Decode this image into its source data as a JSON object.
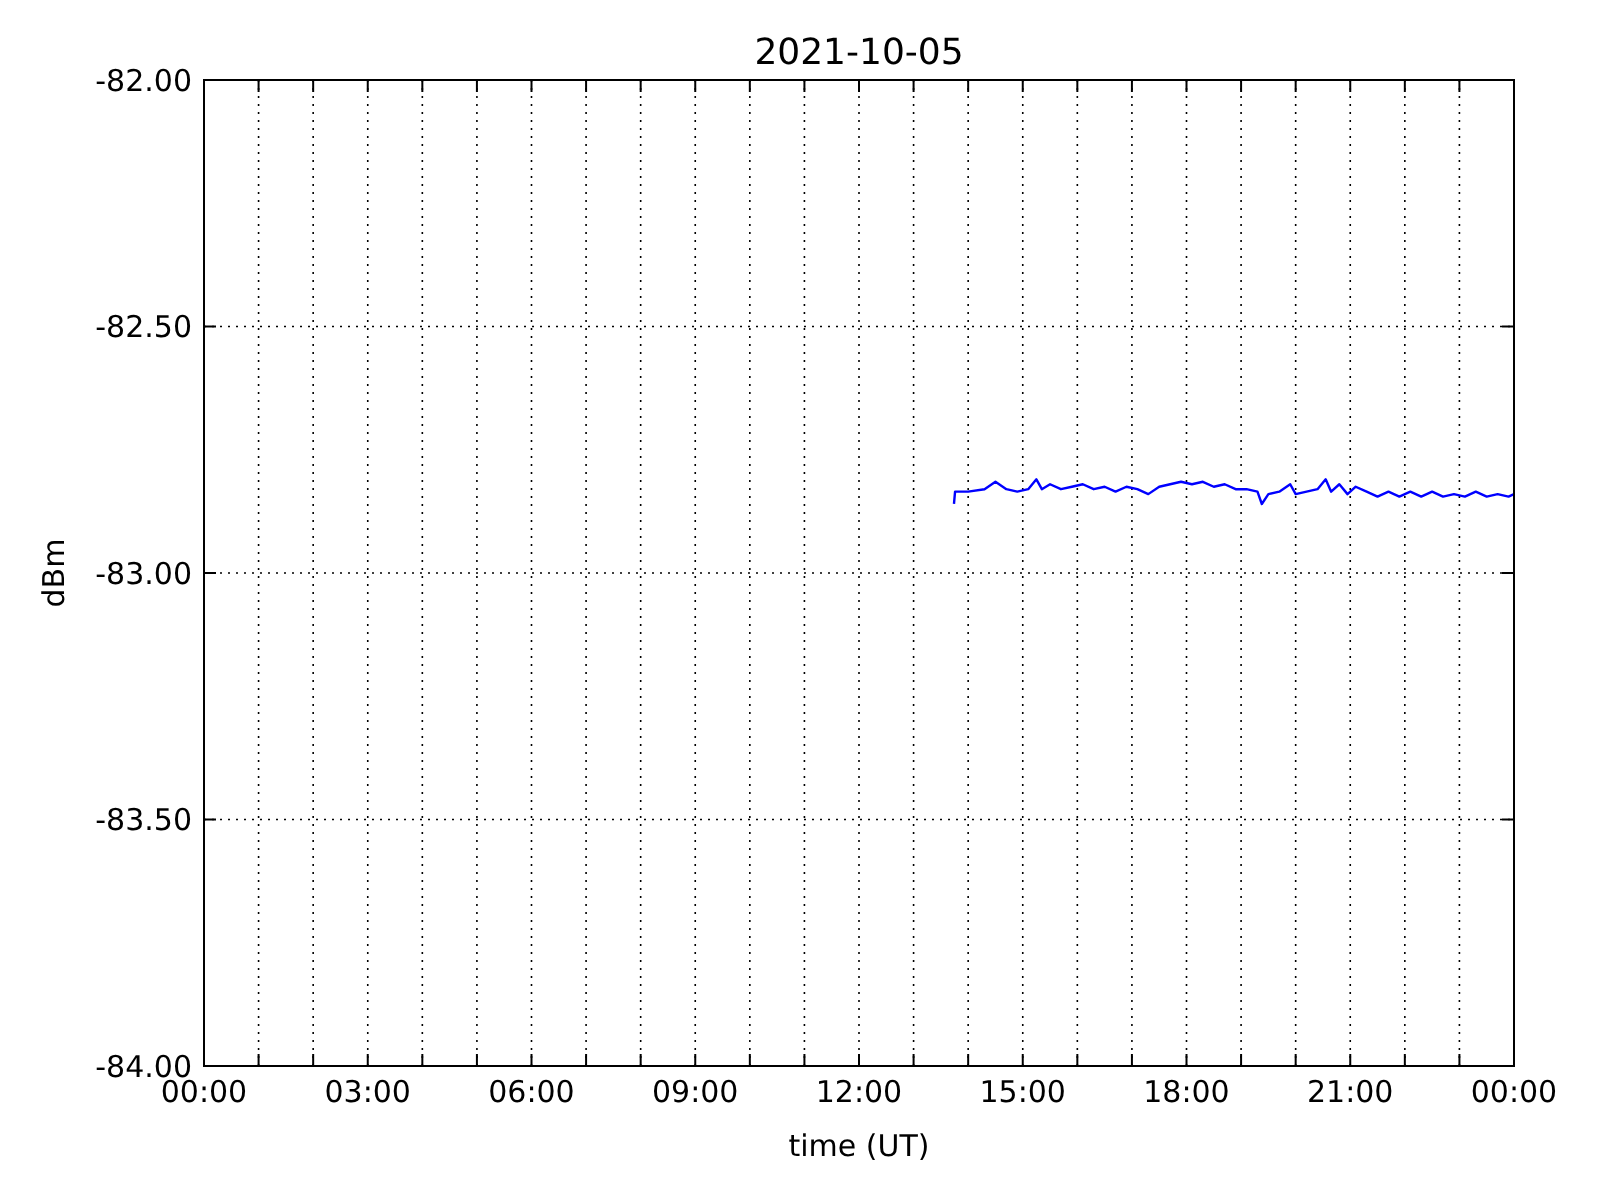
{
  "chart_data": {
    "type": "line",
    "title": "2021-10-05",
    "xlabel": "time (UT)",
    "ylabel": "dBm",
    "xlim": [
      0,
      24
    ],
    "xticks": [
      {
        "value": 0,
        "label": "00:00"
      },
      {
        "value": 1,
        "label": null
      },
      {
        "value": 2,
        "label": null
      },
      {
        "value": 3,
        "label": "03:00"
      },
      {
        "value": 4,
        "label": null
      },
      {
        "value": 5,
        "label": null
      },
      {
        "value": 6,
        "label": "06:00"
      },
      {
        "value": 7,
        "label": null
      },
      {
        "value": 8,
        "label": null
      },
      {
        "value": 9,
        "label": "09:00"
      },
      {
        "value": 10,
        "label": null
      },
      {
        "value": 11,
        "label": null
      },
      {
        "value": 12,
        "label": "12:00"
      },
      {
        "value": 13,
        "label": null
      },
      {
        "value": 14,
        "label": null
      },
      {
        "value": 15,
        "label": "15:00"
      },
      {
        "value": 16,
        "label": null
      },
      {
        "value": 17,
        "label": null
      },
      {
        "value": 18,
        "label": "18:00"
      },
      {
        "value": 19,
        "label": null
      },
      {
        "value": 20,
        "label": null
      },
      {
        "value": 21,
        "label": "21:00"
      },
      {
        "value": 22,
        "label": null
      },
      {
        "value": 23,
        "label": null
      },
      {
        "value": 24,
        "label": "00:00"
      }
    ],
    "ylim": [
      -84,
      -82
    ],
    "yticks": [
      {
        "value": -84,
        "label": "-84.00"
      },
      {
        "value": -83.5,
        "label": "-83.50"
      },
      {
        "value": -83,
        "label": "-83.00"
      },
      {
        "value": -82.5,
        "label": "-82.50"
      },
      {
        "value": -82,
        "label": "-82.00"
      }
    ],
    "grid": true,
    "line_style": "solid",
    "marker": "none",
    "series": [
      {
        "color": "#0000ff",
        "x": [
          13.74,
          13.76,
          14.0,
          14.3,
          14.5,
          14.7,
          14.9,
          15.1,
          15.25,
          15.35,
          15.5,
          15.7,
          15.9,
          16.1,
          16.3,
          16.5,
          16.7,
          16.9,
          17.1,
          17.3,
          17.5,
          17.7,
          17.9,
          18.1,
          18.3,
          18.5,
          18.7,
          18.9,
          19.1,
          19.3,
          19.38,
          19.5,
          19.7,
          19.9,
          20.0,
          20.2,
          20.4,
          20.55,
          20.65,
          20.8,
          20.95,
          21.1,
          21.3,
          21.5,
          21.7,
          21.9,
          22.1,
          22.3,
          22.5,
          22.7,
          22.9,
          23.1,
          23.3,
          23.5,
          23.7,
          23.9,
          24.0
        ],
        "values": [
          -82.86,
          -82.835,
          -82.835,
          -82.83,
          -82.815,
          -82.83,
          -82.835,
          -82.83,
          -82.81,
          -82.83,
          -82.82,
          -82.83,
          -82.825,
          -82.82,
          -82.83,
          -82.825,
          -82.835,
          -82.825,
          -82.83,
          -82.84,
          -82.825,
          -82.82,
          -82.815,
          -82.82,
          -82.815,
          -82.825,
          -82.82,
          -82.83,
          -82.83,
          -82.835,
          -82.86,
          -82.84,
          -82.835,
          -82.82,
          -82.84,
          -82.835,
          -82.83,
          -82.81,
          -82.835,
          -82.82,
          -82.84,
          -82.825,
          -82.835,
          -82.845,
          -82.835,
          -82.845,
          -82.835,
          -82.845,
          -82.835,
          -82.845,
          -82.84,
          -82.845,
          -82.835,
          -82.845,
          -82.84,
          -82.845,
          -82.84
        ]
      }
    ]
  }
}
